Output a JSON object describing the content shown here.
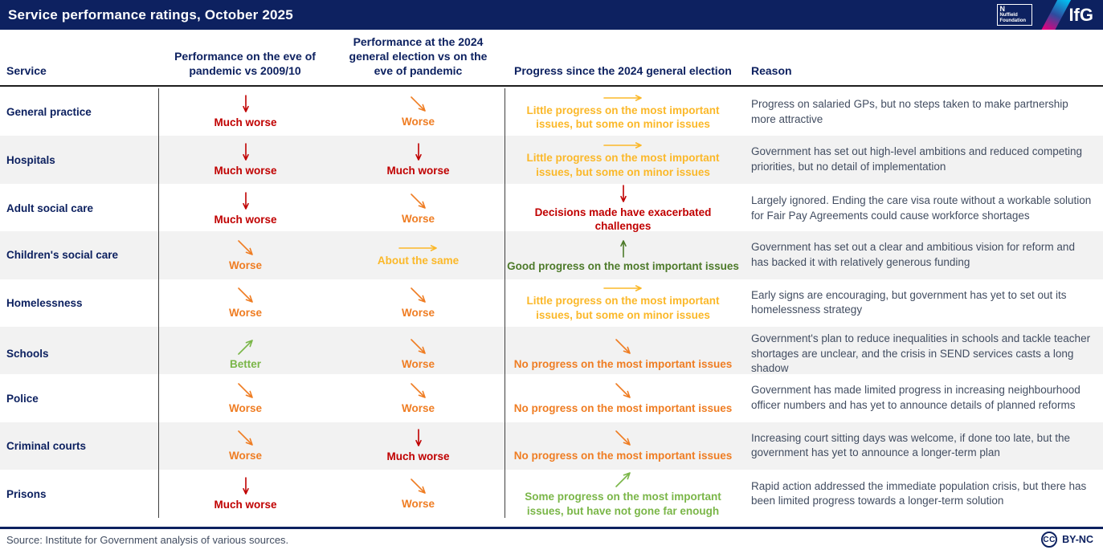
{
  "header": {
    "title": "Service performance ratings, October 2025",
    "logo": {
      "nuffield_n": "N",
      "nuffield": "Nuffield\nFoundation",
      "ifg": "IfG"
    }
  },
  "palette": {
    "navy": "#0d2160",
    "red": "#c00000",
    "orange": "#ef7d23",
    "amber": "#fbb829",
    "light_green": "#7ab648",
    "dark_green": "#4d7a2a",
    "reason_text": "#424d61",
    "row_stripe": "#f2f2f2",
    "grid_line": "#3f3f3f",
    "gradient_cyan": "#00c3f4",
    "gradient_magenta": "#e6007e"
  },
  "chart_data": {
    "type": "table",
    "title": "Service performance ratings, October 2025",
    "columns": [
      "Service",
      "Performance on the eve of\npandemic vs 2009/10",
      "Performance at the 2024\ngeneral election vs on the\neve of pandemic",
      "Progress since the 2024 general election",
      "Reason"
    ],
    "rows": [
      {
        "service": "General practice",
        "eve_of_pandemic": {
          "label": "Much worse",
          "direction": "down",
          "tone": "red"
        },
        "at_2024_election": {
          "label": "Worse",
          "direction": "down-right",
          "tone": "orange"
        },
        "progress": {
          "label": "Little progress on the most important\nissues, but some on minor issues",
          "direction": "right",
          "tone": "amber"
        },
        "reason": "Progress on salaried GPs, but no steps taken to make partnership more attractive"
      },
      {
        "service": "Hospitals",
        "eve_of_pandemic": {
          "label": "Much worse",
          "direction": "down",
          "tone": "red"
        },
        "at_2024_election": {
          "label": "Much worse",
          "direction": "down",
          "tone": "red"
        },
        "progress": {
          "label": "Little progress on the most important\nissues, but some on minor issues",
          "direction": "right",
          "tone": "amber"
        },
        "reason": "Government has set out high-level ambitions and reduced competing priorities, but no detail of implementation"
      },
      {
        "service": "Adult social care",
        "eve_of_pandemic": {
          "label": "Much worse",
          "direction": "down",
          "tone": "red"
        },
        "at_2024_election": {
          "label": "Worse",
          "direction": "down-right",
          "tone": "orange"
        },
        "progress": {
          "label": "Decisions made have exacerbated\nchallenges",
          "direction": "down",
          "tone": "red"
        },
        "reason": "Largely ignored. Ending the care visa route without a workable solution for Fair Pay Agreements could cause workforce shortages"
      },
      {
        "service": "Children's social care",
        "eve_of_pandemic": {
          "label": "Worse",
          "direction": "down-right",
          "tone": "orange"
        },
        "at_2024_election": {
          "label": "About the same",
          "direction": "right",
          "tone": "amber"
        },
        "progress": {
          "label": "Good progress on the most important issues",
          "direction": "up",
          "tone": "dark_green"
        },
        "reason": "Government has set out a clear and ambitious vision for reform and has backed it with relatively generous funding"
      },
      {
        "service": "Homelessness",
        "eve_of_pandemic": {
          "label": "Worse",
          "direction": "down-right",
          "tone": "orange"
        },
        "at_2024_election": {
          "label": "Worse",
          "direction": "down-right",
          "tone": "orange"
        },
        "progress": {
          "label": "Little progress on the most important\nissues, but some on minor issues",
          "direction": "right",
          "tone": "amber"
        },
        "reason": "Early signs are encouraging, but government has yet to set out its homelessness strategy"
      },
      {
        "service": "Schools",
        "eve_of_pandemic": {
          "label": "Better",
          "direction": "up-right",
          "tone": "light_green"
        },
        "at_2024_election": {
          "label": "Worse",
          "direction": "down-right",
          "tone": "orange"
        },
        "progress": {
          "label": "No progress on the most important issues",
          "direction": "down-right",
          "tone": "orange"
        },
        "reason": "Government's plan to reduce inequalities in schools and tackle teacher shortages are unclear, and the crisis in SEND services casts a long shadow"
      },
      {
        "service": "Police",
        "eve_of_pandemic": {
          "label": "Worse",
          "direction": "down-right",
          "tone": "orange"
        },
        "at_2024_election": {
          "label": "Worse",
          "direction": "down-right",
          "tone": "orange"
        },
        "progress": {
          "label": "No progress on the most important issues",
          "direction": "down-right",
          "tone": "orange"
        },
        "reason": "Government has made limited progress in increasing neighbourhood officer numbers and has yet to announce details of planned reforms"
      },
      {
        "service": "Criminal courts",
        "eve_of_pandemic": {
          "label": "Worse",
          "direction": "down-right",
          "tone": "orange"
        },
        "at_2024_election": {
          "label": "Much worse",
          "direction": "down",
          "tone": "red"
        },
        "progress": {
          "label": "No progress on the most important issues",
          "direction": "down-right",
          "tone": "orange"
        },
        "reason": "Increasing court sitting days was welcome, if done too late, but the government has yet to announce a longer-term plan"
      },
      {
        "service": "Prisons",
        "eve_of_pandemic": {
          "label": "Much worse",
          "direction": "down",
          "tone": "red"
        },
        "at_2024_election": {
          "label": "Worse",
          "direction": "down-right",
          "tone": "orange"
        },
        "progress": {
          "label": "Some progress on the most important\nissues, but have not gone far enough",
          "direction": "up-right",
          "tone": "light_green"
        },
        "reason": "Rapid action addressed the immediate population crisis, but there has been limited progress towards a longer-term solution"
      }
    ]
  },
  "footer": {
    "source": "Source: Institute for Government analysis of various sources.",
    "license_icon": "CC",
    "license": "BY-NC"
  }
}
